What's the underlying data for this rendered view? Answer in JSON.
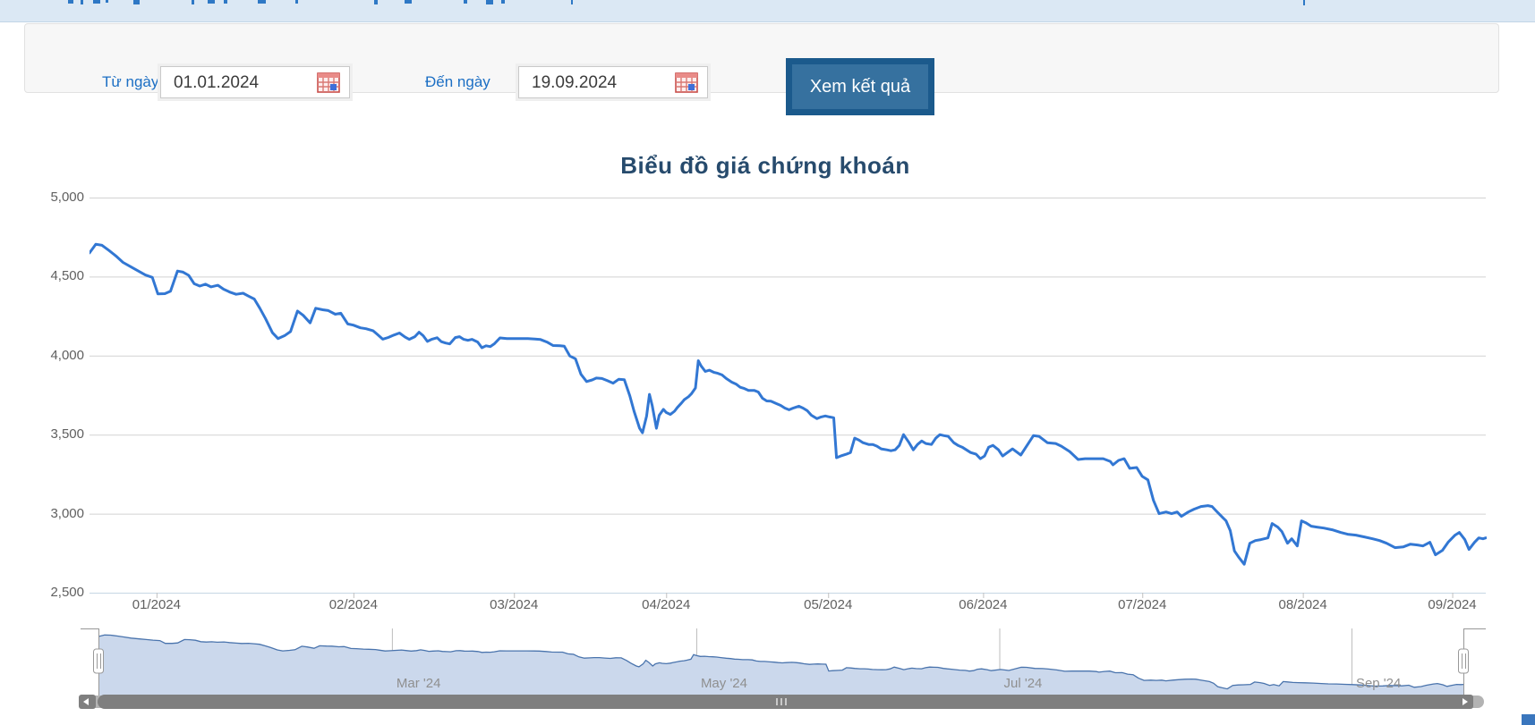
{
  "filter": {
    "from_label": "Từ ngày",
    "from_value": "01.01.2024",
    "to_label": "Đến ngày",
    "to_value": "19.09.2024",
    "submit_label": "Xem kết quả"
  },
  "icons": {
    "from_calendar": "calendar-icon",
    "to_calendar": "calendar-icon",
    "scroll_left": "arrow-left-icon",
    "scroll_right": "arrow-right-icon"
  },
  "colors": {
    "line": "#3277d3",
    "nav_line": "#4a74ad",
    "nav_fill": "#cbd8ec",
    "grid": "#d2d2d2",
    "axis_line": "#c6d6e4",
    "tick": "#c0c0c0",
    "label": "#606060",
    "title": "#274b6d",
    "accent_blue": "#1c6fc4",
    "button_outer": "#1b5a8c",
    "button_inner": "#36719f",
    "scrollbar": "#7f7f7f"
  },
  "chart_data": {
    "type": "line",
    "title": "Biểu đồ giá chứng khoán",
    "xlabel": "",
    "ylabel": "",
    "ylim": [
      2500,
      5000
    ],
    "grid": true,
    "y_axis": {
      "labels": [
        "5,000",
        "4,500",
        "4,000",
        "3,500",
        "3,000",
        "2,500"
      ],
      "values": [
        5000,
        4500,
        4000,
        3500,
        3000,
        2500
      ]
    },
    "x_axis": {
      "ticks": [
        {
          "label": "01/2024",
          "f": 0.048
        },
        {
          "label": "02/2024",
          "f": 0.189
        },
        {
          "label": "03/2024",
          "f": 0.304
        },
        {
          "label": "04/2024",
          "f": 0.413
        },
        {
          "label": "05/2024",
          "f": 0.529
        },
        {
          "label": "06/2024",
          "f": 0.64
        },
        {
          "label": "07/2024",
          "f": 0.754
        },
        {
          "label": "08/2024",
          "f": 0.869
        },
        {
          "label": "09/2024",
          "f": 0.976
        }
      ]
    },
    "series": [
      {
        "name": "price",
        "points": [
          [
            0.0,
            4650
          ],
          [
            0.0045,
            4705
          ],
          [
            0.009,
            4698
          ],
          [
            0.014,
            4665
          ],
          [
            0.019,
            4630
          ],
          [
            0.024,
            4590
          ],
          [
            0.03,
            4560
          ],
          [
            0.035,
            4535
          ],
          [
            0.04,
            4510
          ],
          [
            0.045,
            4495
          ],
          [
            0.049,
            4390
          ],
          [
            0.054,
            4392
          ],
          [
            0.058,
            4408
          ],
          [
            0.063,
            4535
          ],
          [
            0.067,
            4528
          ],
          [
            0.071,
            4508
          ],
          [
            0.075,
            4455
          ],
          [
            0.079,
            4440
          ],
          [
            0.083,
            4452
          ],
          [
            0.087,
            4435
          ],
          [
            0.092,
            4445
          ],
          [
            0.096,
            4420
          ],
          [
            0.101,
            4400
          ],
          [
            0.105,
            4388
          ],
          [
            0.11,
            4395
          ],
          [
            0.114,
            4376
          ],
          [
            0.118,
            4358
          ],
          [
            0.122,
            4300
          ],
          [
            0.126,
            4235
          ],
          [
            0.131,
            4145
          ],
          [
            0.135,
            4108
          ],
          [
            0.14,
            4128
          ],
          [
            0.144,
            4152
          ],
          [
            0.149,
            4282
          ],
          [
            0.153,
            4255
          ],
          [
            0.158,
            4207
          ],
          [
            0.162,
            4300
          ],
          [
            0.167,
            4290
          ],
          [
            0.171,
            4285
          ],
          [
            0.176,
            4262
          ],
          [
            0.18,
            4268
          ],
          [
            0.185,
            4200
          ],
          [
            0.189,
            4193
          ],
          [
            0.194,
            4176
          ],
          [
            0.198,
            4170
          ],
          [
            0.203,
            4158
          ],
          [
            0.206,
            4135
          ],
          [
            0.21,
            4104
          ],
          [
            0.214,
            4115
          ],
          [
            0.218,
            4130
          ],
          [
            0.222,
            4143
          ],
          [
            0.226,
            4117
          ],
          [
            0.229,
            4103
          ],
          [
            0.233,
            4120
          ],
          [
            0.236,
            4148
          ],
          [
            0.239,
            4126
          ],
          [
            0.242,
            4090
          ],
          [
            0.245,
            4103
          ],
          [
            0.249,
            4113
          ],
          [
            0.252,
            4088
          ],
          [
            0.255,
            4080
          ],
          [
            0.258,
            4074
          ],
          [
            0.262,
            4114
          ],
          [
            0.265,
            4120
          ],
          [
            0.268,
            4103
          ],
          [
            0.271,
            4097
          ],
          [
            0.274,
            4103
          ],
          [
            0.278,
            4086
          ],
          [
            0.281,
            4050
          ],
          [
            0.284,
            4062
          ],
          [
            0.287,
            4057
          ],
          [
            0.29,
            4075
          ],
          [
            0.294,
            4112
          ],
          [
            0.299,
            4108
          ],
          [
            0.304,
            4108
          ],
          [
            0.309,
            4108
          ],
          [
            0.314,
            4108
          ],
          [
            0.319,
            4105
          ],
          [
            0.323,
            4102
          ],
          [
            0.328,
            4084
          ],
          [
            0.332,
            4064
          ],
          [
            0.337,
            4063
          ],
          [
            0.34,
            4060
          ],
          [
            0.344,
            3998
          ],
          [
            0.348,
            3980
          ],
          [
            0.352,
            3882
          ],
          [
            0.356,
            3836
          ],
          [
            0.36,
            3846
          ],
          [
            0.363,
            3858
          ],
          [
            0.367,
            3855
          ],
          [
            0.371,
            3841
          ],
          [
            0.375,
            3826
          ],
          [
            0.379,
            3850
          ],
          [
            0.383,
            3848
          ],
          [
            0.387,
            3745
          ],
          [
            0.39,
            3648
          ],
          [
            0.394,
            3540
          ],
          [
            0.396,
            3512
          ],
          [
            0.399,
            3617
          ],
          [
            0.401,
            3755
          ],
          [
            0.403,
            3684
          ],
          [
            0.406,
            3540
          ],
          [
            0.408,
            3622
          ],
          [
            0.411,
            3660
          ],
          [
            0.413,
            3640
          ],
          [
            0.416,
            3628
          ],
          [
            0.419,
            3648
          ],
          [
            0.421,
            3672
          ],
          [
            0.424,
            3700
          ],
          [
            0.426,
            3722
          ],
          [
            0.429,
            3740
          ],
          [
            0.431,
            3758
          ],
          [
            0.434,
            3795
          ],
          [
            0.436,
            3968
          ],
          [
            0.438,
            3935
          ],
          [
            0.441,
            3900
          ],
          [
            0.444,
            3908
          ],
          [
            0.447,
            3895
          ],
          [
            0.45,
            3888
          ],
          [
            0.453,
            3878
          ],
          [
            0.456,
            3855
          ],
          [
            0.46,
            3832
          ],
          [
            0.463,
            3820
          ],
          [
            0.466,
            3800
          ],
          [
            0.469,
            3792
          ],
          [
            0.472,
            3780
          ],
          [
            0.476,
            3780
          ],
          [
            0.479,
            3770
          ],
          [
            0.482,
            3730
          ],
          [
            0.485,
            3713
          ],
          [
            0.488,
            3712
          ],
          [
            0.492,
            3696
          ],
          [
            0.495,
            3685
          ],
          [
            0.498,
            3668
          ],
          [
            0.501,
            3657
          ],
          [
            0.504,
            3668
          ],
          [
            0.508,
            3680
          ],
          [
            0.511,
            3668
          ],
          [
            0.514,
            3652
          ],
          [
            0.517,
            3623
          ],
          [
            0.521,
            3601
          ],
          [
            0.524,
            3612
          ],
          [
            0.527,
            3618
          ],
          [
            0.53,
            3612
          ],
          [
            0.533,
            3607
          ],
          [
            0.535,
            3354
          ],
          [
            0.538,
            3365
          ],
          [
            0.542,
            3376
          ],
          [
            0.545,
            3387
          ],
          [
            0.548,
            3478
          ],
          [
            0.551,
            3466
          ],
          [
            0.554,
            3449
          ],
          [
            0.558,
            3438
          ],
          [
            0.561,
            3438
          ],
          [
            0.564,
            3427
          ],
          [
            0.567,
            3410
          ],
          [
            0.571,
            3404
          ],
          [
            0.574,
            3398
          ],
          [
            0.577,
            3404
          ],
          [
            0.58,
            3432
          ],
          [
            0.583,
            3500
          ],
          [
            0.587,
            3449
          ],
          [
            0.59,
            3404
          ],
          [
            0.593,
            3438
          ],
          [
            0.596,
            3460
          ],
          [
            0.599,
            3444
          ],
          [
            0.603,
            3438
          ],
          [
            0.606,
            3477
          ],
          [
            0.609,
            3500
          ],
          [
            0.612,
            3494
          ],
          [
            0.615,
            3489
          ],
          [
            0.619,
            3449
          ],
          [
            0.622,
            3432
          ],
          [
            0.625,
            3421
          ],
          [
            0.628,
            3404
          ],
          [
            0.631,
            3387
          ],
          [
            0.635,
            3376
          ],
          [
            0.638,
            3348
          ],
          [
            0.641,
            3365
          ],
          [
            0.644,
            3421
          ],
          [
            0.647,
            3432
          ],
          [
            0.651,
            3404
          ],
          [
            0.654,
            3365
          ],
          [
            0.661,
            3410
          ],
          [
            0.667,
            3371
          ],
          [
            0.676,
            3494
          ],
          [
            0.68,
            3489
          ],
          [
            0.686,
            3449
          ],
          [
            0.692,
            3444
          ],
          [
            0.696,
            3427
          ],
          [
            0.702,
            3393
          ],
          [
            0.708,
            3343
          ],
          [
            0.713,
            3348
          ],
          [
            0.721,
            3348
          ],
          [
            0.726,
            3348
          ],
          [
            0.731,
            3331
          ],
          [
            0.733,
            3309
          ],
          [
            0.737,
            3337
          ],
          [
            0.741,
            3348
          ],
          [
            0.745,
            3287
          ],
          [
            0.75,
            3292
          ],
          [
            0.754,
            3236
          ],
          [
            0.758,
            3214
          ],
          [
            0.762,
            3084
          ],
          [
            0.766,
            3000
          ],
          [
            0.771,
            3011
          ],
          [
            0.775,
            3000
          ],
          [
            0.779,
            3011
          ],
          [
            0.782,
            2983
          ],
          [
            0.787,
            3011
          ],
          [
            0.791,
            3028
          ],
          [
            0.796,
            3045
          ],
          [
            0.801,
            3051
          ],
          [
            0.804,
            3045
          ],
          [
            0.807,
            3017
          ],
          [
            0.812,
            2972
          ],
          [
            0.814,
            2955
          ],
          [
            0.817,
            2893
          ],
          [
            0.82,
            2764
          ],
          [
            0.823,
            2725
          ],
          [
            0.827,
            2680
          ],
          [
            0.831,
            2813
          ],
          [
            0.835,
            2830
          ],
          [
            0.839,
            2836
          ],
          [
            0.844,
            2847
          ],
          [
            0.847,
            2938
          ],
          [
            0.851,
            2915
          ],
          [
            0.854,
            2887
          ],
          [
            0.858,
            2813
          ],
          [
            0.861,
            2841
          ],
          [
            0.865,
            2796
          ],
          [
            0.868,
            2955
          ],
          [
            0.871,
            2943
          ],
          [
            0.875,
            2921
          ],
          [
            0.879,
            2915
          ],
          [
            0.884,
            2909
          ],
          [
            0.89,
            2898
          ],
          [
            0.896,
            2881
          ],
          [
            0.901,
            2870
          ],
          [
            0.907,
            2864
          ],
          [
            0.913,
            2853
          ],
          [
            0.919,
            2841
          ],
          [
            0.924,
            2830
          ],
          [
            0.929,
            2813
          ],
          [
            0.935,
            2785
          ],
          [
            0.941,
            2790
          ],
          [
            0.946,
            2807
          ],
          [
            0.951,
            2802
          ],
          [
            0.955,
            2796
          ],
          [
            0.96,
            2819
          ],
          [
            0.964,
            2740
          ],
          [
            0.969,
            2768
          ],
          [
            0.973,
            2819
          ],
          [
            0.978,
            2864
          ],
          [
            0.981,
            2881
          ],
          [
            0.985,
            2836
          ],
          [
            0.988,
            2774
          ],
          [
            0.992,
            2819
          ],
          [
            0.995,
            2847
          ],
          [
            0.998,
            2841
          ],
          [
            1.0,
            2847
          ]
        ]
      }
    ],
    "navigator": {
      "ticks": [
        {
          "label": "Mar '24",
          "f": 0.215
        },
        {
          "label": "May '24",
          "f": 0.438
        },
        {
          "label": "Jul '24",
          "f": 0.66
        },
        {
          "label": "Sep '24",
          "f": 0.918
        }
      ],
      "value_range": [
        2600,
        4750
      ]
    }
  }
}
